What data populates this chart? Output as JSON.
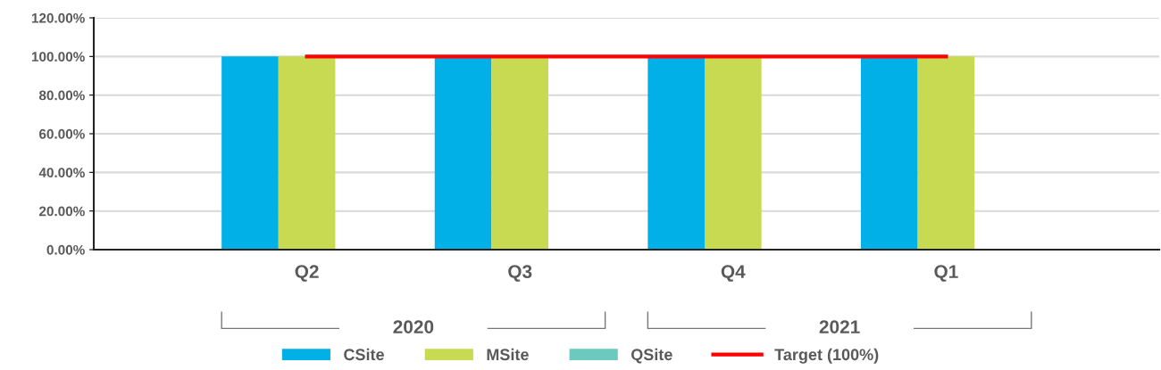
{
  "chart_data": {
    "type": "bar",
    "categories": [
      "Q2",
      "Q3",
      "Q4",
      "Q1"
    ],
    "series": [
      {
        "name": "CSite",
        "color": "#00b0e6",
        "values": [
          100,
          100,
          100,
          100
        ]
      },
      {
        "name": "MSite",
        "color": "#c8da52",
        "values": [
          100,
          100,
          100,
          100
        ]
      },
      {
        "name": "QSite",
        "color": "#6cc9bd",
        "values": [
          null,
          null,
          null,
          null
        ]
      },
      {
        "name": "Target (100%)",
        "type": "line",
        "color": "#ff0000",
        "values": [
          100,
          100,
          100,
          100
        ]
      }
    ],
    "annotations": [
      "2020",
      "2021"
    ],
    "ylim": [
      0,
      120
    ],
    "yticks": [
      {
        "value": 0,
        "label": "0.00%"
      },
      {
        "value": 20,
        "label": "20.00%"
      },
      {
        "value": 40,
        "label": "40.00%"
      },
      {
        "value": 60,
        "label": "60.00%"
      },
      {
        "value": 80,
        "label": "80.00%"
      },
      {
        "value": 100,
        "label": "100.00%"
      },
      {
        "value": 120,
        "label": "120.00%"
      }
    ],
    "grid": "y",
    "legend": "bottom"
  }
}
